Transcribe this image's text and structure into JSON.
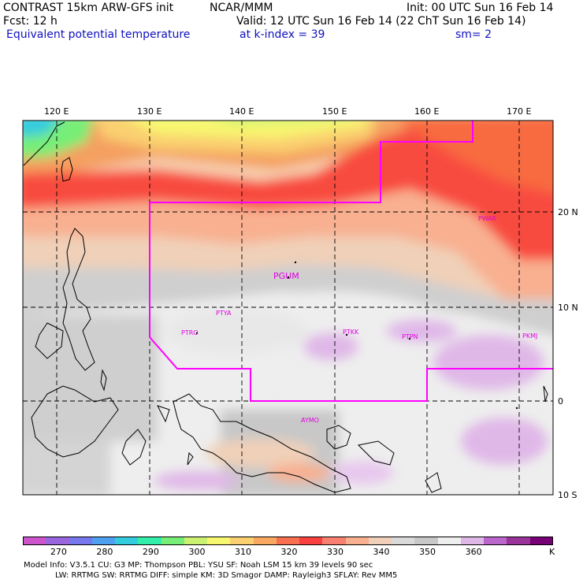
{
  "header": {
    "line1_left": "CONTRAST 15km ARW-GFS init",
    "line1_mid": "NCAR/MMM",
    "line1_right": "Init: 00 UTC Sun 16 Feb 14",
    "line2_left": "Fcst:    12 h",
    "line2_right": "Valid: 12 UTC Sun 16 Feb 14 (22 ChT Sun 16 Feb 14)",
    "line3_left": "Equivalent potential temperature",
    "line3_mid": "at k-index =  39",
    "line3_right": "sm= 2"
  },
  "map": {
    "lon_labels": [
      "120 E",
      "130 E",
      "140 E",
      "150 E",
      "160 E",
      "170 E"
    ],
    "lat_labels": [
      "20 N",
      "10 N",
      "0",
      "10 S"
    ],
    "stations": [
      "PWAK",
      "PGUM",
      "PTYA",
      "PTRO",
      "PTKK",
      "PTPN",
      "PKMJ",
      "AYMO"
    ],
    "colors": {
      "station": "#e000e0",
      "boundary": "#ff00ff",
      "grid": "#000000"
    }
  },
  "colorbar": {
    "ticks": [
      "270",
      "280",
      "290",
      "300",
      "310",
      "320",
      "330",
      "340",
      "350",
      "360"
    ],
    "unit": "K",
    "colors": [
      "#cc55cc",
      "#9966dd",
      "#7777ee",
      "#4fa0f0",
      "#33ccdd",
      "#33eeaa",
      "#77ee77",
      "#ccf070",
      "#f8f870",
      "#fad070",
      "#f8a860",
      "#f87050",
      "#f84040",
      "#f88070",
      "#f8b090",
      "#f0d0b8",
      "#dadada",
      "#c8c8c8",
      "#eeeeee",
      "#e0b8e8",
      "#bb66cc",
      "#993399",
      "#770077"
    ]
  },
  "footer": {
    "line1": "Model Info: V3.5.1     CU: G3        MP: Thompson      PBL: YSU        SF: Noah LSM      15 km    39 levels    90 sec",
    "line2": "LW: RRTMG     SW: RRTMG   DIFF: simple KM: 3D Smagor DAMP: Rayleigh3   SFLAY: Rev MM5"
  }
}
